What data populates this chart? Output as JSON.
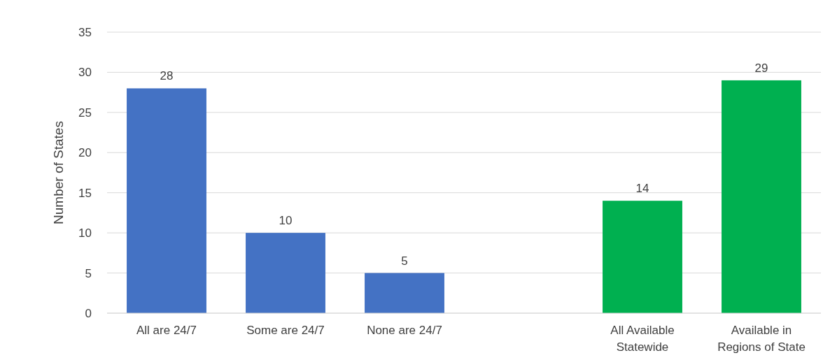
{
  "chart_data": {
    "type": "bar",
    "ylabel": "Number of States",
    "categories": [
      "All are 24/7",
      "Some are 24/7",
      "None are 24/7",
      null,
      "All Available Statewide",
      "Available in Regions of State"
    ],
    "values": [
      28,
      10,
      5,
      null,
      14,
      29
    ],
    "colors": [
      "#4472c4",
      "#4472c4",
      "#4472c4",
      null,
      "#00b050",
      "#00b050"
    ],
    "ylim": [
      0,
      35
    ],
    "yticks": [
      0,
      5,
      10,
      15,
      20,
      25,
      30,
      35
    ],
    "grid": "y",
    "data_labels": true
  }
}
